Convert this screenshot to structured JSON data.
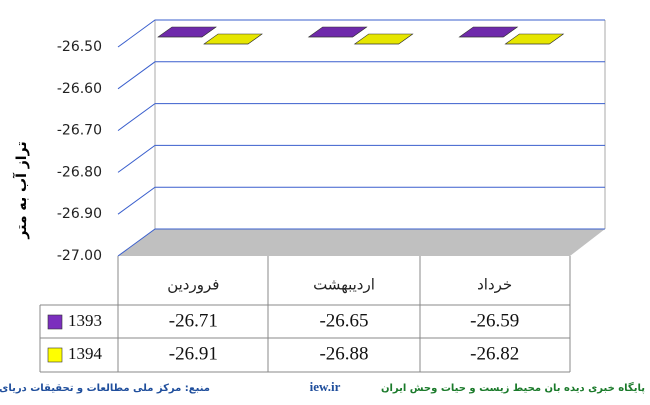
{
  "chart_data": {
    "type": "bar3d",
    "y_label": "تراز آب به متر",
    "categories": [
      "فروردین",
      "اردیبهشت",
      "خرداد"
    ],
    "series": [
      {
        "name": "1393",
        "color": "#7b2fbe",
        "values": [
          -26.71,
          -26.65,
          -26.59
        ]
      },
      {
        "name": "1394",
        "color": "#ffff00",
        "values": [
          -26.91,
          -26.88,
          -26.82
        ]
      }
    ],
    "ylim": [
      -27,
      -26.5
    ],
    "yticks": [
      {
        "value": -27,
        "label": "-27.00"
      },
      {
        "value": -26.9,
        "label": "-26.90"
      },
      {
        "value": -26.8,
        "label": "-26.80"
      },
      {
        "value": -26.7,
        "label": "-26.70"
      },
      {
        "value": -26.6,
        "label": "-26.60"
      },
      {
        "value": -26.5,
        "label": "-26.50"
      }
    ],
    "grid": true,
    "footer": {
      "source": "منبع: مرکز ملی مطالعات و تحقیقات دریای خزر",
      "site": "iew.ir",
      "publisher": "پایگاه خبری دیده بان محیط زیست و حیات وحش ایران"
    }
  }
}
